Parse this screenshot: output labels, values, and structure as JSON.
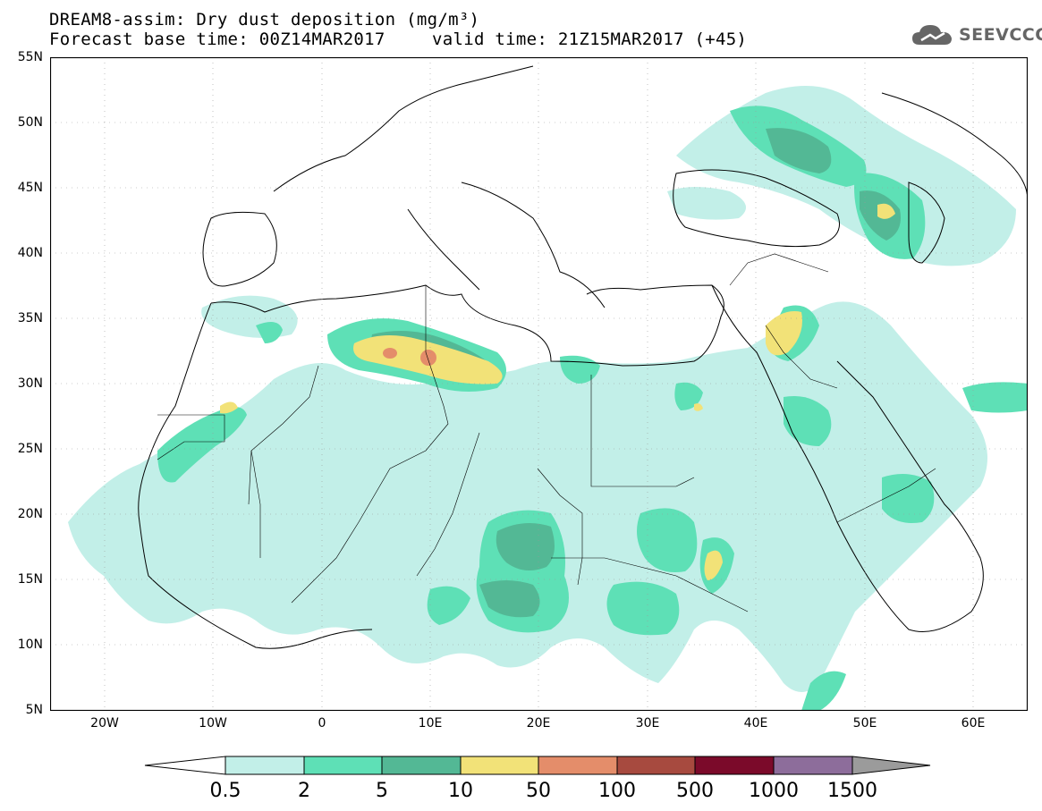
{
  "header": {
    "line1": "DREAM8-assim: Dry dust deposition (mg/m³)",
    "line2a": "Forecast base time: 00Z14MAR2017",
    "line2b": "valid time: 21Z15MAR2017 (+45)"
  },
  "logo": {
    "text": "SEEVCCC",
    "icon": "cloud-icon"
  },
  "map": {
    "lat_labels": [
      "55N",
      "50N",
      "45N",
      "40N",
      "35N",
      "30N",
      "25N",
      "20N",
      "15N",
      "10N",
      "5N"
    ],
    "lon_labels": [
      "20W",
      "10W",
      "0",
      "10E",
      "20E",
      "30E",
      "40E",
      "50E",
      "60E"
    ],
    "extent": {
      "lon_min": -25,
      "lon_max": 65,
      "lat_min": 5,
      "lat_max": 55
    }
  },
  "colorbar": {
    "labels": [
      "0.5",
      "2",
      "5",
      "10",
      "50",
      "100",
      "500",
      "1000",
      "1500"
    ],
    "colors": [
      "#c2efe8",
      "#5ee0b6",
      "#53b895",
      "#f2e278",
      "#e48d6a",
      "#a74a3f",
      "#7b0a2a",
      "#8d6d9b",
      "#9b9b9b"
    ],
    "low_end_color": "#ffffff"
  },
  "colors": {
    "level1": "#c2efe8",
    "level2": "#5ee0b6",
    "level3": "#53b895",
    "level4": "#f2e278",
    "level5": "#e48d6a",
    "level6": "#a74a3f"
  }
}
